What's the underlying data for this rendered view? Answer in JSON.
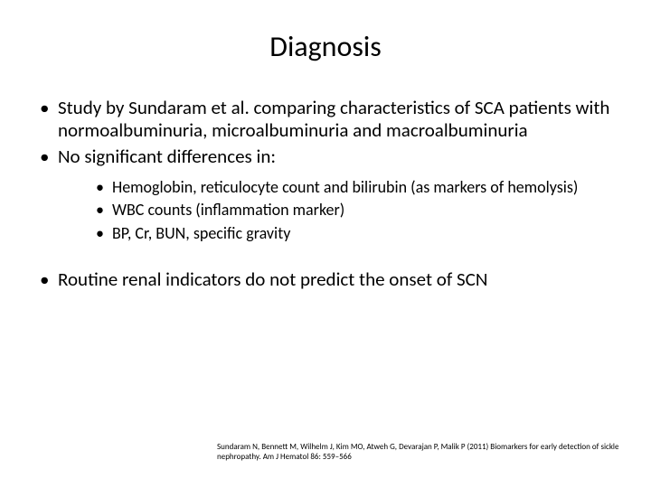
{
  "title": "Diagnosis",
  "bullets": {
    "b1": "Study by Sundaram et al. comparing characteristics of SCA patients with normoalbuminuria, microalbuminuria and macroalbuminuria",
    "b2": "No significant differences in:",
    "sub1": "Hemoglobin, reticulocyte count and bilirubin (as markers of hemolysis)",
    "sub2": "WBC counts (inflammation marker)",
    "sub3": "BP, Cr, BUN, specific gravity",
    "b3": "Routine renal indicators do not predict the onset of SCN"
  },
  "citation": "Sundaram N, Bennett M, Wilhelm J, Kim MO, Atweh G, Devarajan P, Malik P (2011) Biomarkers for early detection of sickle nephropathy. Am J Hematol 86: 559–566",
  "style": {
    "background": "#ffffff",
    "text_color": "#000000",
    "title_fontsize": 32,
    "body_fontsize": 21,
    "sub_fontsize": 18,
    "citation_fontsize": 9,
    "font_family": "Calibri"
  }
}
